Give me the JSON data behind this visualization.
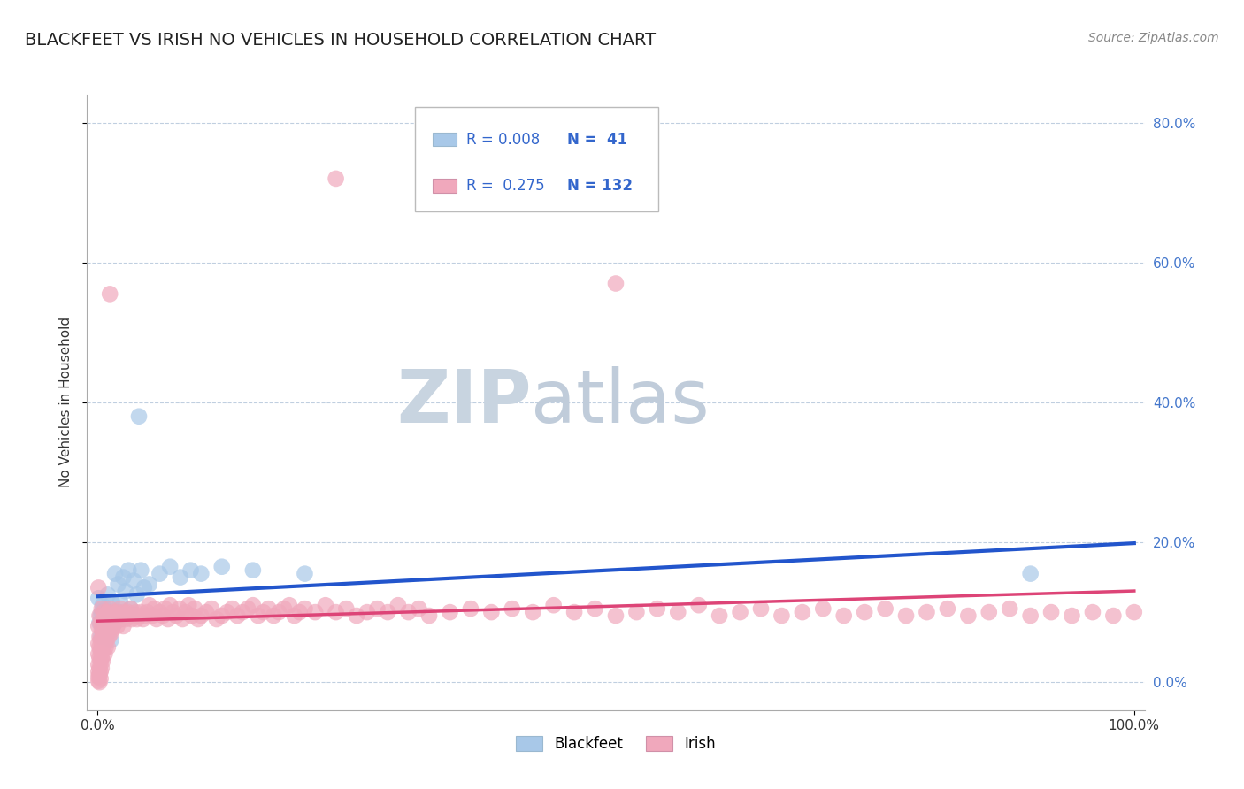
{
  "title": "BLACKFEET VS IRISH NO VEHICLES IN HOUSEHOLD CORRELATION CHART",
  "source_text": "Source: ZipAtlas.com",
  "ylabel": "No Vehicles in Household",
  "blackfeet_color": "#a8c8e8",
  "irish_color": "#f0a8bc",
  "trendline_blackfeet_color": "#2255cc",
  "trendline_irish_color": "#dd4477",
  "background_color": "#ffffff",
  "grid_color": "#c0cfe0",
  "title_color": "#222222",
  "title_fontsize": 14,
  "axis_label_fontsize": 11,
  "tick_fontsize": 11,
  "source_fontsize": 10,
  "watermark_zip": "ZIP",
  "watermark_atlas": "atlas",
  "watermark_color_zip": "#c8d4e0",
  "watermark_color_atlas": "#c0ccda",
  "watermark_fontsize": 60,
  "legend_box_color": "#a8c8e8",
  "legend_pink_color": "#f0a8bc",
  "legend_text_color": "#3366cc",
  "xlim": [
    -0.01,
    1.01
  ],
  "ylim": [
    -0.04,
    0.84
  ],
  "yticks": [
    0.0,
    0.2,
    0.4,
    0.6,
    0.8
  ],
  "xticks": [
    0.0,
    1.0
  ],
  "blackfeet_points": [
    [
      0.001,
      0.12
    ],
    [
      0.002,
      0.085
    ],
    [
      0.003,
      0.065
    ],
    [
      0.003,
      0.095
    ],
    [
      0.004,
      0.1
    ],
    [
      0.005,
      0.075
    ],
    [
      0.005,
      0.11
    ],
    [
      0.006,
      0.08
    ],
    [
      0.007,
      0.09
    ],
    [
      0.008,
      0.105
    ],
    [
      0.009,
      0.07
    ],
    [
      0.01,
      0.125
    ],
    [
      0.011,
      0.085
    ],
    [
      0.012,
      0.095
    ],
    [
      0.013,
      0.06
    ],
    [
      0.014,
      0.115
    ],
    [
      0.015,
      0.08
    ],
    [
      0.017,
      0.155
    ],
    [
      0.018,
      0.09
    ],
    [
      0.02,
      0.14
    ],
    [
      0.021,
      0.1
    ],
    [
      0.022,
      0.115
    ],
    [
      0.025,
      0.15
    ],
    [
      0.027,
      0.13
    ],
    [
      0.03,
      0.16
    ],
    [
      0.032,
      0.105
    ],
    [
      0.035,
      0.145
    ],
    [
      0.038,
      0.125
    ],
    [
      0.04,
      0.38
    ],
    [
      0.042,
      0.16
    ],
    [
      0.045,
      0.135
    ],
    [
      0.05,
      0.14
    ],
    [
      0.06,
      0.155
    ],
    [
      0.07,
      0.165
    ],
    [
      0.08,
      0.15
    ],
    [
      0.09,
      0.16
    ],
    [
      0.1,
      0.155
    ],
    [
      0.12,
      0.165
    ],
    [
      0.15,
      0.16
    ],
    [
      0.2,
      0.155
    ],
    [
      0.9,
      0.155
    ]
  ],
  "irish_points": [
    [
      0.001,
      0.135
    ],
    [
      0.001,
      0.08
    ],
    [
      0.001,
      0.055
    ],
    [
      0.001,
      0.04
    ],
    [
      0.001,
      0.025
    ],
    [
      0.001,
      0.015
    ],
    [
      0.001,
      0.008
    ],
    [
      0.001,
      0.002
    ],
    [
      0.002,
      0.095
    ],
    [
      0.002,
      0.065
    ],
    [
      0.002,
      0.05
    ],
    [
      0.002,
      0.035
    ],
    [
      0.002,
      0.02
    ],
    [
      0.002,
      0.01
    ],
    [
      0.002,
      0.0
    ],
    [
      0.003,
      0.085
    ],
    [
      0.003,
      0.06
    ],
    [
      0.003,
      0.045
    ],
    [
      0.003,
      0.03
    ],
    [
      0.003,
      0.015
    ],
    [
      0.003,
      0.005
    ],
    [
      0.004,
      0.105
    ],
    [
      0.004,
      0.075
    ],
    [
      0.004,
      0.05
    ],
    [
      0.004,
      0.035
    ],
    [
      0.004,
      0.02
    ],
    [
      0.005,
      0.09
    ],
    [
      0.005,
      0.065
    ],
    [
      0.005,
      0.045
    ],
    [
      0.005,
      0.03
    ],
    [
      0.006,
      0.1
    ],
    [
      0.006,
      0.07
    ],
    [
      0.006,
      0.05
    ],
    [
      0.007,
      0.085
    ],
    [
      0.007,
      0.06
    ],
    [
      0.007,
      0.04
    ],
    [
      0.008,
      0.095
    ],
    [
      0.008,
      0.07
    ],
    [
      0.008,
      0.05
    ],
    [
      0.009,
      0.08
    ],
    [
      0.009,
      0.06
    ],
    [
      0.01,
      0.1
    ],
    [
      0.01,
      0.075
    ],
    [
      0.01,
      0.05
    ],
    [
      0.011,
      0.085
    ],
    [
      0.011,
      0.065
    ],
    [
      0.012,
      0.105
    ],
    [
      0.012,
      0.555
    ],
    [
      0.013,
      0.09
    ],
    [
      0.013,
      0.07
    ],
    [
      0.014,
      0.095
    ],
    [
      0.014,
      0.075
    ],
    [
      0.015,
      0.08
    ],
    [
      0.016,
      0.1
    ],
    [
      0.017,
      0.085
    ],
    [
      0.018,
      0.095
    ],
    [
      0.019,
      0.08
    ],
    [
      0.02,
      0.1
    ],
    [
      0.021,
      0.09
    ],
    [
      0.022,
      0.105
    ],
    [
      0.023,
      0.09
    ],
    [
      0.024,
      0.095
    ],
    [
      0.025,
      0.08
    ],
    [
      0.026,
      0.1
    ],
    [
      0.027,
      0.09
    ],
    [
      0.028,
      0.095
    ],
    [
      0.03,
      0.1
    ],
    [
      0.032,
      0.105
    ],
    [
      0.033,
      0.09
    ],
    [
      0.035,
      0.095
    ],
    [
      0.037,
      0.1
    ],
    [
      0.038,
      0.09
    ],
    [
      0.04,
      0.095
    ],
    [
      0.042,
      0.1
    ],
    [
      0.044,
      0.09
    ],
    [
      0.046,
      0.095
    ],
    [
      0.048,
      0.1
    ],
    [
      0.05,
      0.11
    ],
    [
      0.053,
      0.095
    ],
    [
      0.055,
      0.105
    ],
    [
      0.057,
      0.09
    ],
    [
      0.06,
      0.1
    ],
    [
      0.063,
      0.095
    ],
    [
      0.065,
      0.105
    ],
    [
      0.068,
      0.09
    ],
    [
      0.07,
      0.11
    ],
    [
      0.073,
      0.1
    ],
    [
      0.076,
      0.095
    ],
    [
      0.079,
      0.105
    ],
    [
      0.082,
      0.09
    ],
    [
      0.085,
      0.1
    ],
    [
      0.088,
      0.11
    ],
    [
      0.091,
      0.095
    ],
    [
      0.094,
      0.105
    ],
    [
      0.097,
      0.09
    ],
    [
      0.1,
      0.095
    ],
    [
      0.105,
      0.1
    ],
    [
      0.11,
      0.105
    ],
    [
      0.115,
      0.09
    ],
    [
      0.12,
      0.095
    ],
    [
      0.125,
      0.1
    ],
    [
      0.13,
      0.105
    ],
    [
      0.135,
      0.095
    ],
    [
      0.14,
      0.1
    ],
    [
      0.145,
      0.105
    ],
    [
      0.15,
      0.11
    ],
    [
      0.155,
      0.095
    ],
    [
      0.16,
      0.1
    ],
    [
      0.165,
      0.105
    ],
    [
      0.17,
      0.095
    ],
    [
      0.175,
      0.1
    ],
    [
      0.18,
      0.105
    ],
    [
      0.185,
      0.11
    ],
    [
      0.19,
      0.095
    ],
    [
      0.195,
      0.1
    ],
    [
      0.2,
      0.105
    ],
    [
      0.21,
      0.1
    ],
    [
      0.22,
      0.11
    ],
    [
      0.23,
      0.1
    ],
    [
      0.24,
      0.105
    ],
    [
      0.25,
      0.095
    ],
    [
      0.26,
      0.1
    ],
    [
      0.27,
      0.105
    ],
    [
      0.28,
      0.1
    ],
    [
      0.29,
      0.11
    ],
    [
      0.3,
      0.1
    ],
    [
      0.31,
      0.105
    ],
    [
      0.32,
      0.095
    ],
    [
      0.34,
      0.1
    ],
    [
      0.36,
      0.105
    ],
    [
      0.38,
      0.1
    ],
    [
      0.4,
      0.105
    ],
    [
      0.42,
      0.1
    ],
    [
      0.44,
      0.11
    ],
    [
      0.46,
      0.1
    ],
    [
      0.48,
      0.105
    ],
    [
      0.5,
      0.095
    ],
    [
      0.52,
      0.1
    ],
    [
      0.54,
      0.105
    ],
    [
      0.56,
      0.1
    ],
    [
      0.58,
      0.11
    ],
    [
      0.6,
      0.095
    ],
    [
      0.62,
      0.1
    ],
    [
      0.64,
      0.105
    ],
    [
      0.66,
      0.095
    ],
    [
      0.68,
      0.1
    ],
    [
      0.7,
      0.105
    ],
    [
      0.72,
      0.095
    ],
    [
      0.74,
      0.1
    ],
    [
      0.76,
      0.105
    ],
    [
      0.78,
      0.095
    ],
    [
      0.8,
      0.1
    ],
    [
      0.82,
      0.105
    ],
    [
      0.84,
      0.095
    ],
    [
      0.86,
      0.1
    ],
    [
      0.88,
      0.105
    ],
    [
      0.9,
      0.095
    ],
    [
      0.92,
      0.1
    ],
    [
      0.94,
      0.095
    ],
    [
      0.96,
      0.1
    ],
    [
      0.98,
      0.095
    ],
    [
      1.0,
      0.1
    ],
    [
      0.23,
      0.72
    ],
    [
      0.5,
      0.57
    ]
  ]
}
